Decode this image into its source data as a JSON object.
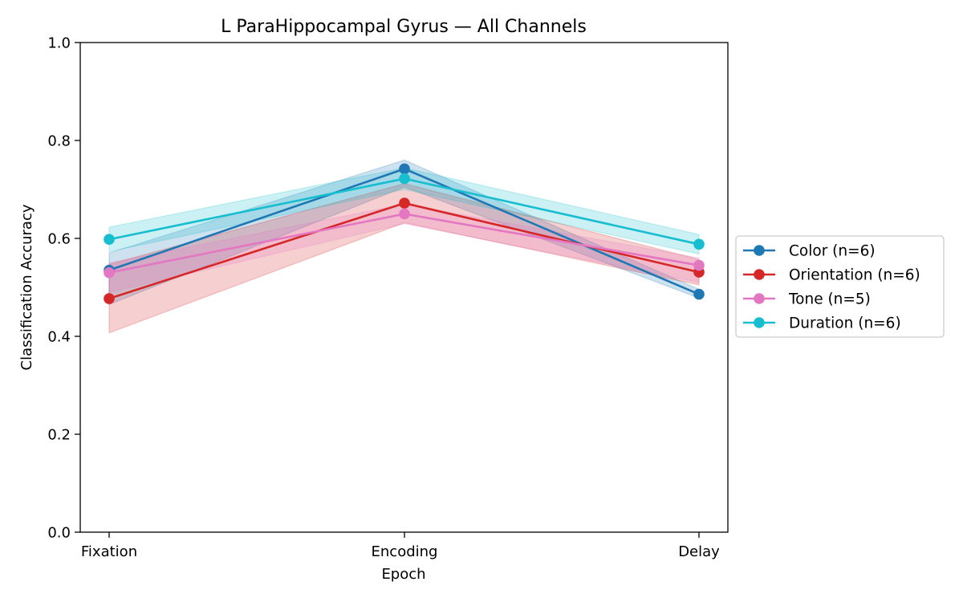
{
  "chart_data": {
    "type": "line",
    "title": "L ParaHippocampal Gyrus — All Channels",
    "xlabel": "Epoch",
    "ylabel": "Classification Accuracy",
    "categories": [
      "Fixation",
      "Encoding",
      "Delay"
    ],
    "ylim": [
      0.0,
      1.0
    ],
    "yticks": [
      0.0,
      0.2,
      0.4,
      0.6,
      0.8,
      1.0
    ],
    "ytick_labels": [
      "0.0",
      "0.2",
      "0.4",
      "0.6",
      "0.8",
      "1.0"
    ],
    "grid": false,
    "legend_position": "outside-right",
    "series": [
      {
        "name": "Color (n=6)",
        "color": "#1f77b4",
        "values": [
          0.535,
          0.742,
          0.486
        ],
        "lower": [
          0.465,
          0.705,
          0.478
        ],
        "upper": [
          0.57,
          0.76,
          0.496
        ]
      },
      {
        "name": "Orientation (n=6)",
        "color": "#d62728",
        "values": [
          0.477,
          0.672,
          0.531
        ],
        "lower": [
          0.407,
          0.632,
          0.505
        ],
        "upper": [
          0.547,
          0.712,
          0.557
        ]
      },
      {
        "name": "Tone (n=5)",
        "color": "#e377c2",
        "values": [
          0.53,
          0.65,
          0.545
        ],
        "lower": [
          0.49,
          0.63,
          0.51
        ],
        "upper": [
          0.55,
          0.67,
          0.56
        ]
      },
      {
        "name": "Duration (n=6)",
        "color": "#17becf",
        "values": [
          0.598,
          0.722,
          0.588
        ],
        "lower": [
          0.573,
          0.7,
          0.568
        ],
        "upper": [
          0.623,
          0.744,
          0.608
        ]
      }
    ]
  }
}
